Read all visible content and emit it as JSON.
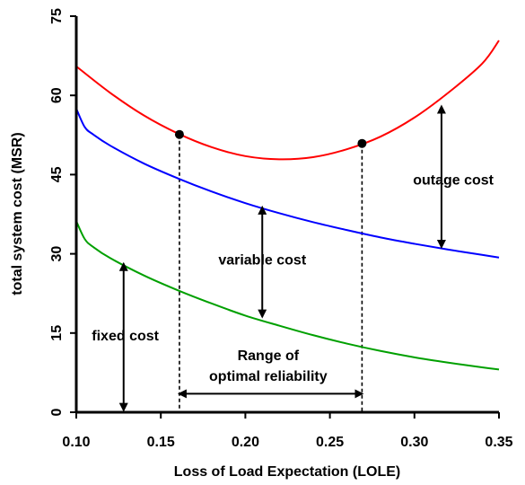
{
  "chart_data": {
    "type": "line",
    "xlabel": "Loss of Load Expectation (LOLE)",
    "ylabel": "total system cost (MSR)",
    "xlim": [
      0.1,
      0.35
    ],
    "ylim": [
      0,
      75
    ],
    "x_ticks": [
      "0.10",
      "0.15",
      "0.20",
      "0.25",
      "0.30",
      "0.35"
    ],
    "y_ticks": [
      "0",
      "15",
      "30",
      "45",
      "60",
      "75"
    ],
    "x_tick_values": [
      0.1,
      0.15,
      0.2,
      0.25,
      0.3,
      0.35
    ],
    "y_tick_values": [
      0,
      15,
      30,
      45,
      60,
      75
    ],
    "grid": false,
    "legend": "none",
    "series": [
      {
        "color": "#ff0000",
        "x": [
          0.1,
          0.12,
          0.14,
          0.16,
          0.18,
          0.2,
          0.22,
          0.24,
          0.26,
          0.28,
          0.3,
          0.32,
          0.34,
          0.35
        ],
        "y": [
          65.5,
          60.5,
          56.2,
          52.8,
          50.2,
          48.5,
          47.9,
          48.3,
          49.8,
          52.2,
          55.8,
          60.5,
          66.0,
          70.4
        ]
      },
      {
        "color": "#0000ff",
        "x": [
          0.1,
          0.105,
          0.11,
          0.12,
          0.14,
          0.16,
          0.18,
          0.2,
          0.22,
          0.24,
          0.26,
          0.28,
          0.3,
          0.32,
          0.34,
          0.35
        ],
        "y": [
          57.5,
          54.0,
          52.6,
          50.5,
          47.1,
          44.3,
          41.8,
          39.6,
          37.7,
          36.0,
          34.5,
          33.1,
          31.9,
          30.8,
          29.8,
          29.3
        ]
      },
      {
        "color": "#00a000",
        "x": [
          0.1,
          0.105,
          0.11,
          0.12,
          0.14,
          0.16,
          0.18,
          0.2,
          0.22,
          0.24,
          0.26,
          0.28,
          0.3,
          0.32,
          0.34,
          0.35
        ],
        "y": [
          36.2,
          32.8,
          31.3,
          29.2,
          25.9,
          23.1,
          20.6,
          18.3,
          16.4,
          14.6,
          13.0,
          11.6,
          10.4,
          9.4,
          8.5,
          8.1
        ]
      }
    ],
    "markers": [
      {
        "x": 0.161,
        "y": 52.6
      },
      {
        "x": 0.269,
        "y": 50.9
      }
    ],
    "dashed_lines": [
      {
        "x": 0.161,
        "y_top": 52.6
      },
      {
        "x": 0.269,
        "y_top": 50.9
      }
    ],
    "arrows": [
      {
        "x1": 0.128,
        "y1": 0.4,
        "x2": 0.128,
        "y2": 28.1
      },
      {
        "x1": 0.21,
        "y1": 18.1,
        "x2": 0.21,
        "y2": 38.8
      },
      {
        "x1": 0.316,
        "y1": 31.3,
        "x2": 0.316,
        "y2": 57.9
      },
      {
        "x1": 0.161,
        "y1": 3.5,
        "x2": 0.269,
        "y2": 3.5
      }
    ],
    "annotations": [
      {
        "text": "fixed cost",
        "x": 0.129,
        "y": 14.3
      },
      {
        "text": "variable cost",
        "x": 0.21,
        "y": 28.7
      },
      {
        "text": "outage cost",
        "x": 0.323,
        "y": 43.8
      },
      {
        "text": "Range of",
        "x": 0.2135,
        "y": 10.6
      },
      {
        "text": "optimal reliability",
        "x": 0.2135,
        "y": 6.7
      }
    ]
  }
}
